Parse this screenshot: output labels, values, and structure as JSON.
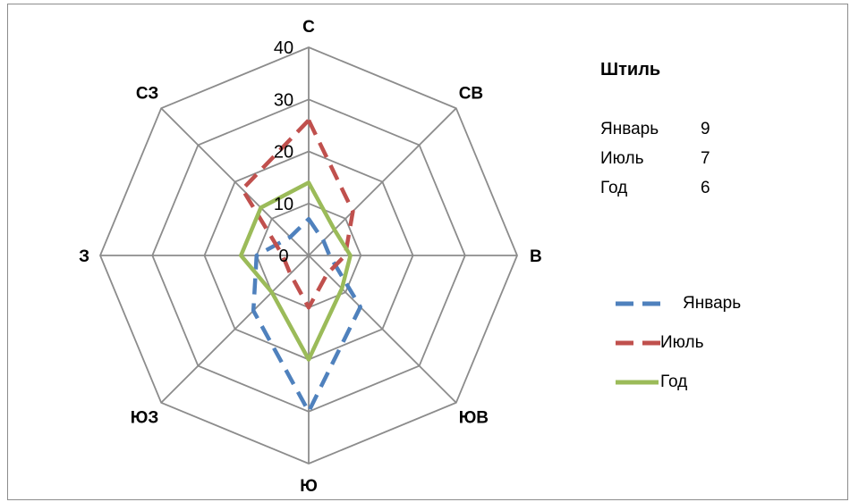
{
  "chart_data": {
    "type": "radar",
    "axes": [
      "С",
      "СВ",
      "В",
      "ЮВ",
      "Ю",
      "ЮЗ",
      "З",
      "СЗ"
    ],
    "rlim": [
      0,
      40
    ],
    "ticks": [
      "0",
      "10",
      "20",
      "30",
      "40"
    ],
    "series": [
      {
        "name": "Январь",
        "values": [
          7,
          4,
          4,
          14,
          30,
          15,
          10,
          5
        ],
        "color": "#4f81bd",
        "dash": "dashed"
      },
      {
        "name": "Июль",
        "values": [
          26,
          12,
          7,
          5,
          10,
          5,
          5,
          18
        ],
        "color": "#c0504d",
        "dash": "dashed"
      },
      {
        "name": "Год",
        "values": [
          14,
          7,
          8,
          9,
          20,
          10,
          13,
          13
        ],
        "color": "#9bbb59",
        "dash": "solid"
      }
    ],
    "grid": true,
    "legend": "right"
  },
  "calm": {
    "title": "Штиль",
    "rows": [
      {
        "label": "Январь",
        "value": "9"
      },
      {
        "label": "Июль",
        "value": "7"
      },
      {
        "label": "Год",
        "value": "6"
      }
    ]
  }
}
